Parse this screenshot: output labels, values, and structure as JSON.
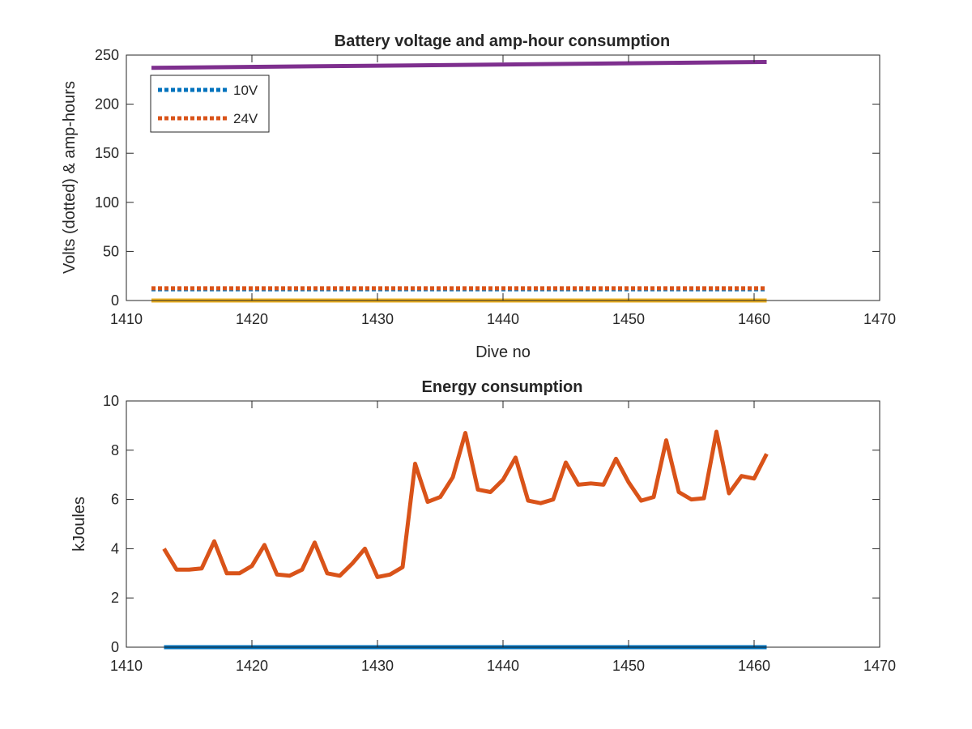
{
  "chart_data": [
    {
      "type": "line",
      "title": "Battery voltage and amp-hour consumption",
      "xlabel": "Dive no",
      "ylabel": "Volts (dotted) & amp-hours",
      "xlim": [
        1410,
        1470
      ],
      "ylim": [
        0,
        250
      ],
      "xticks": [
        "1410",
        "1420",
        "1430",
        "1440",
        "1450",
        "1460",
        "1470"
      ],
      "yticks": [
        "0",
        "50",
        "100",
        "150",
        "200",
        "250"
      ],
      "grid": false,
      "legend_position": "top-left",
      "series": [
        {
          "name": "10V",
          "style": "dotted",
          "color": "#0072BD",
          "x": [
            1412,
            1461
          ],
          "y": [
            11.5,
            11.5
          ]
        },
        {
          "name": "24V",
          "style": "dotted",
          "color": "#D95319",
          "x": [
            1412,
            1461
          ],
          "y": [
            12.5,
            12.5
          ]
        },
        {
          "style": "solid",
          "color": "#7E2F8E",
          "x": [
            1412,
            1461
          ],
          "y": [
            237,
            243
          ]
        },
        {
          "style": "solid",
          "color": "#EDB120",
          "x": [
            1412,
            1461
          ],
          "y": [
            0,
            0
          ]
        }
      ]
    },
    {
      "type": "line",
      "title": "Energy consumption",
      "xlabel": "",
      "ylabel": "kJoules",
      "xlim": [
        1410,
        1470
      ],
      "ylim": [
        0,
        10
      ],
      "xticks": [
        "1410",
        "1420",
        "1430",
        "1440",
        "1450",
        "1460",
        "1470"
      ],
      "yticks": [
        "0",
        "2",
        "4",
        "6",
        "8",
        "10"
      ],
      "grid": false,
      "series": [
        {
          "style": "solid",
          "color": "#D95319",
          "x": [
            1413,
            1414,
            1415,
            1416,
            1417,
            1418,
            1419,
            1420,
            1421,
            1422,
            1423,
            1424,
            1425,
            1426,
            1427,
            1428,
            1429,
            1430,
            1431,
            1432,
            1433,
            1434,
            1435,
            1436,
            1437,
            1438,
            1439,
            1440,
            1441,
            1442,
            1443,
            1444,
            1445,
            1446,
            1447,
            1448,
            1449,
            1450,
            1451,
            1452,
            1453,
            1454,
            1455,
            1456,
            1457,
            1458,
            1459,
            1460,
            1461
          ],
          "y": [
            4.0,
            3.15,
            3.15,
            3.2,
            4.3,
            3.0,
            3.0,
            3.3,
            4.15,
            2.95,
            2.9,
            3.15,
            4.25,
            3.0,
            2.9,
            3.4,
            4.0,
            2.85,
            2.95,
            3.25,
            7.45,
            5.9,
            6.1,
            6.9,
            8.7,
            6.4,
            6.3,
            6.8,
            7.7,
            5.95,
            5.85,
            6.0,
            7.5,
            6.6,
            6.65,
            6.6,
            7.65,
            6.7,
            5.95,
            6.1,
            8.4,
            6.3,
            6.0,
            6.05,
            8.75,
            6.25,
            6.95,
            6.85,
            7.85
          ]
        },
        {
          "style": "solid",
          "color": "#0072BD",
          "x": [
            1413,
            1461
          ],
          "y": [
            0,
            0
          ]
        }
      ]
    }
  ]
}
